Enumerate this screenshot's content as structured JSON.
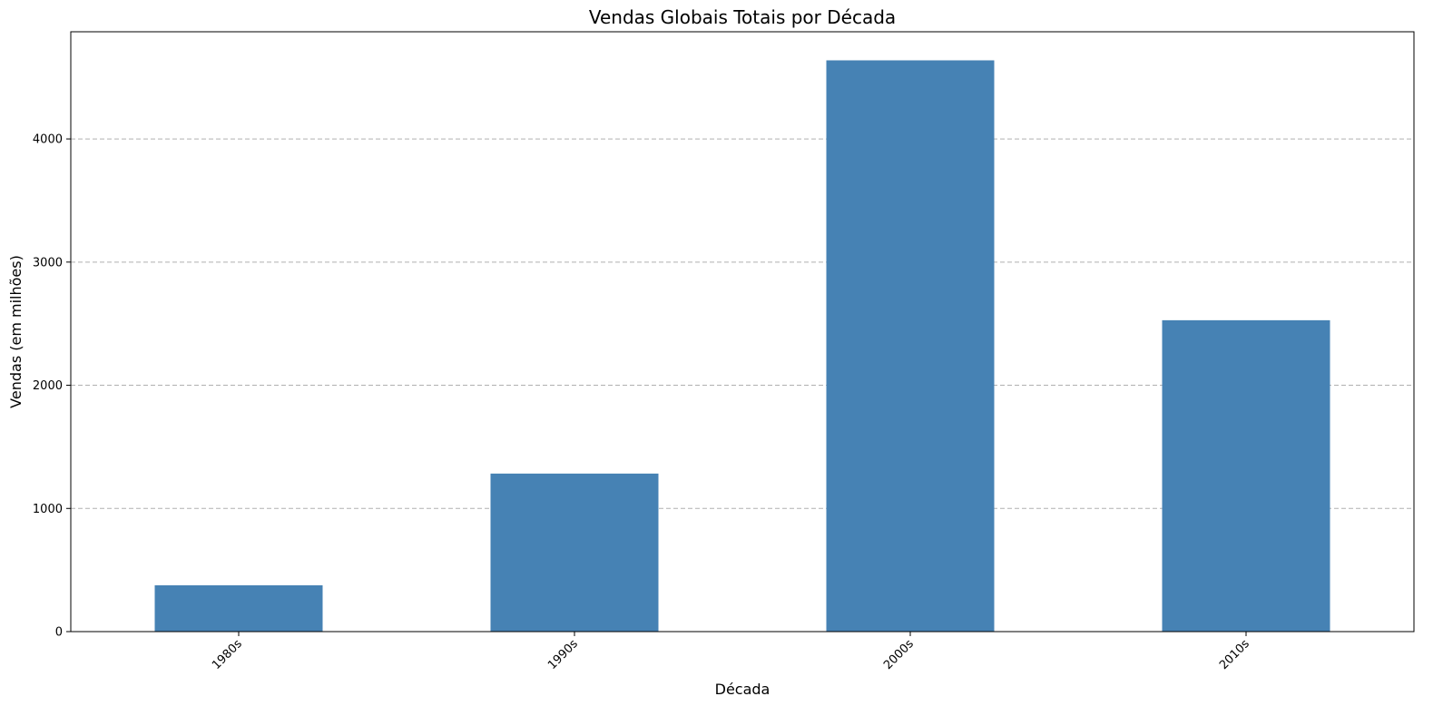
{
  "chart_data": {
    "type": "bar",
    "title": "Vendas Globais Totais por Década",
    "xlabel": "Década",
    "ylabel": "Vendas (em milhões)",
    "categories": [
      "1980s",
      "1990s",
      "2000s",
      "2010s"
    ],
    "values": [
      376,
      1283,
      4638,
      2528
    ],
    "ylim": [
      0,
      4870
    ],
    "yticks": [
      0,
      1000,
      2000,
      3000,
      4000
    ],
    "grid": "y-dashed",
    "legend": "none",
    "bar_color": "#4682b4"
  }
}
